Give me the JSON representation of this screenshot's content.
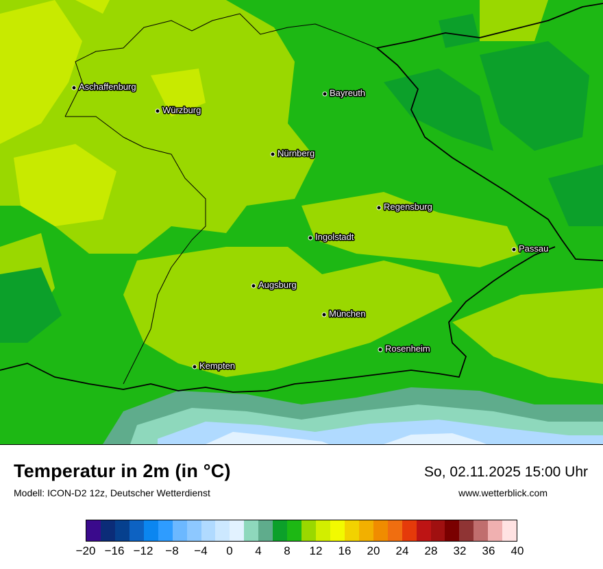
{
  "header": {
    "title": "Temperatur in 2m (in °C)",
    "subtitle": "Modell: ICON-D2 12z, Deutscher Wetterdienst",
    "datetime": "So, 02.11.2025 15:00 Uhr",
    "website": "www.wetterblick.com"
  },
  "map": {
    "region": "Bayern",
    "cities": [
      {
        "name": "Aschaffenburg"
      },
      {
        "name": "Würzburg"
      },
      {
        "name": "Bayreuth"
      },
      {
        "name": "Nürnberg"
      },
      {
        "name": "Regensburg"
      },
      {
        "name": "Ingolstadt"
      },
      {
        "name": "Passau"
      },
      {
        "name": "Augsburg"
      },
      {
        "name": "München"
      },
      {
        "name": "Rosenheim"
      },
      {
        "name": "Kempten"
      }
    ]
  },
  "legend": {
    "unit": "°C",
    "min": -20,
    "max": 40,
    "colors": [
      "#3a0a8c",
      "#0b2c78",
      "#06408e",
      "#0d62c2",
      "#0b86f0",
      "#2e9cff",
      "#6cb8ff",
      "#8dc8ff",
      "#b0daff",
      "#cce8ff",
      "#e2f2ff",
      "#8ed8bc",
      "#5fac8c",
      "#0ca02a",
      "#1db814",
      "#9ad800",
      "#d2ee00",
      "#f2fa00",
      "#f2d200",
      "#f2b000",
      "#f08c00",
      "#f06e10",
      "#e53a0a",
      "#bd1414",
      "#a01010",
      "#7a0000",
      "#8f3434",
      "#c06e6e",
      "#f0b0b0",
      "#ffe2e2"
    ],
    "ticks": [
      "−20",
      "−16",
      "−12",
      "−8",
      "−4",
      "0",
      "4",
      "8",
      "12",
      "16",
      "20",
      "24",
      "28",
      "32",
      "36",
      "40"
    ]
  }
}
